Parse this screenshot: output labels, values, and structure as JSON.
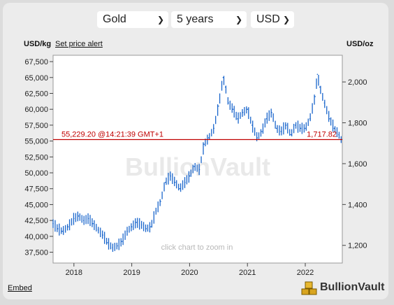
{
  "controls": {
    "metal": "Gold",
    "period": "5 years",
    "currency": "USD"
  },
  "header": {
    "left_unit": "USD/kg",
    "alert_link": "Set price alert",
    "right_unit": "USD/oz"
  },
  "current_price": {
    "kg_label": "55,229.20",
    "time_label": "@14:21:39 GMT+1",
    "oz_label": "1,717.82",
    "value_kg": 55229.2,
    "color": "#c00000"
  },
  "watermark": "BullionVault",
  "zoom_hint": "click chart to zoom in",
  "footer": {
    "embed": "Embed",
    "logo": "BullionVault"
  },
  "colors": {
    "series": "#1a66cc",
    "price_line": "#c00000"
  },
  "chart_data": {
    "type": "line",
    "title": "",
    "xlabel": "",
    "ylabel": "USD/kg",
    "ylabel_right": "USD/oz",
    "x_ticks": [
      "2018",
      "2019",
      "2020",
      "2021",
      "2022"
    ],
    "x_range": [
      2017.64,
      2022.64
    ],
    "y_ticks_left": [
      "37,500",
      "40,000",
      "42,500",
      "45,000",
      "47,500",
      "50,000",
      "52,500",
      "55,000",
      "57,500",
      "60,000",
      "62,500",
      "65,000",
      "67,500"
    ],
    "y_ticks_right": [
      "1,200",
      "1,400",
      "1,600",
      "1,800",
      "2,000"
    ],
    "ylim_left": [
      35800,
      68500
    ],
    "series": [
      {
        "x": [
          2017.64,
          2017.72,
          2017.8,
          2017.9,
          2018.0,
          2018.08,
          2018.17,
          2018.25,
          2018.33,
          2018.42,
          2018.5,
          2018.58,
          2018.67,
          2018.75,
          2018.83,
          2018.92,
          2019.0,
          2019.08,
          2019.17,
          2019.25,
          2019.33,
          2019.42,
          2019.5,
          2019.58,
          2019.67,
          2019.75,
          2019.83,
          2019.92,
          2020.0,
          2020.08,
          2020.17,
          2020.25,
          2020.33,
          2020.42,
          2020.5,
          2020.58,
          2020.62,
          2020.67,
          2020.75,
          2020.83,
          2020.92,
          2021.0,
          2021.08,
          2021.17,
          2021.25,
          2021.33,
          2021.42,
          2021.5,
          2021.58,
          2021.67,
          2021.75,
          2021.83,
          2021.92,
          2022.0,
          2022.08,
          2022.17,
          2022.21,
          2022.25,
          2022.33,
          2022.42,
          2022.5,
          2022.58,
          2022.62
        ],
        "y": [
          42000,
          41200,
          40800,
          41500,
          42800,
          43200,
          42500,
          42800,
          42000,
          41000,
          40200,
          39000,
          38200,
          38500,
          39200,
          40800,
          41500,
          42200,
          41800,
          41200,
          41500,
          44000,
          45500,
          48500,
          49500,
          48500,
          47500,
          48500,
          49500,
          51000,
          50500,
          54500,
          55500,
          57000,
          60500,
          65000,
          63500,
          61000,
          60000,
          58500,
          59500,
          60000,
          57500,
          55500,
          56500,
          58500,
          59500,
          57000,
          56500,
          57500,
          56000,
          57500,
          57000,
          57000,
          58500,
          62000,
          65500,
          63500,
          61000,
          58500,
          57000,
          56000,
          55229
        ]
      }
    ]
  }
}
